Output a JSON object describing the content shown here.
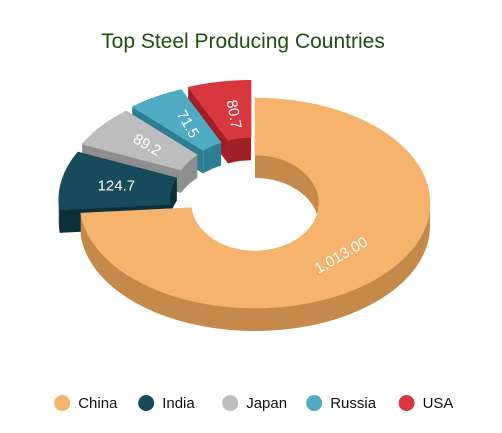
{
  "chart_data": {
    "type": "pie",
    "variant": "3d-exploded-donut",
    "title": "Top Steel Producing Countries",
    "slices": [
      {
        "name": "China",
        "value": 1013.0,
        "label": "1,013.00",
        "color": "#f5b36d",
        "side_color": "#c58a4b"
      },
      {
        "name": "India",
        "value": 124.7,
        "label": "124.7",
        "color": "#174a5a",
        "side_color": "#0d2f3a"
      },
      {
        "name": "Japan",
        "value": 89.2,
        "label": "89.2",
        "color": "#bdbdbd",
        "side_color": "#8e8e8e"
      },
      {
        "name": "Russia",
        "value": 71.5,
        "label": "71.5",
        "color": "#4faac3",
        "side_color": "#2f7d92"
      },
      {
        "name": "USA",
        "value": 80.7,
        "label": "80.7",
        "color": "#d8373f",
        "side_color": "#9f1f26"
      }
    ],
    "legend_position": "bottom"
  }
}
